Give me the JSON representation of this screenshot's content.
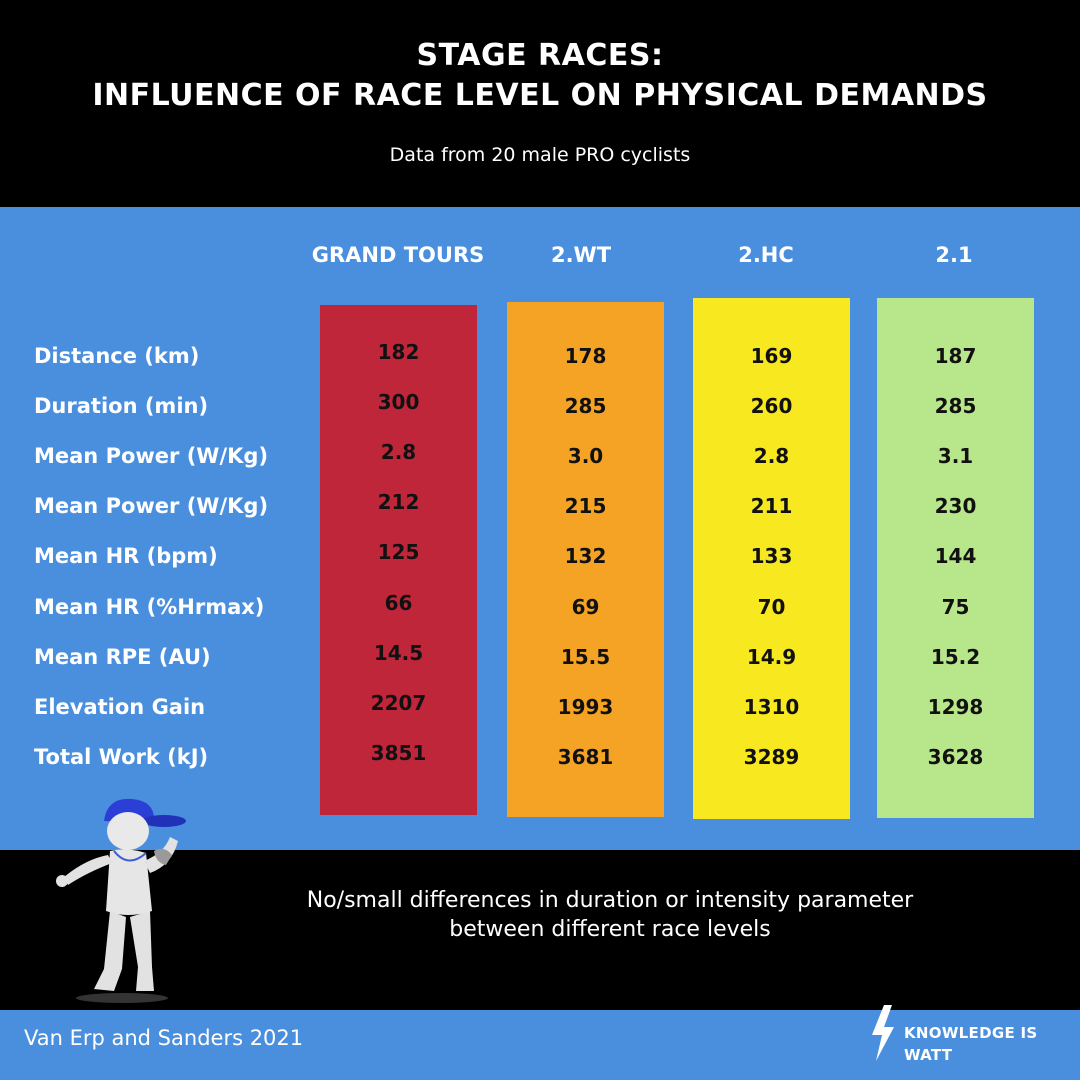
{
  "header": {
    "title_line1": "STAGE RACES:",
    "title_line2": "INFLUENCE OF RACE LEVEL ON PHYSICAL DEMANDS",
    "subtitle": "Data from 20 male PRO cyclists"
  },
  "chart_data": {
    "type": "table",
    "columns": [
      {
        "name": "GRAND TOURS",
        "color": "#c0263a",
        "values": [
          "182",
          "300",
          "2.8",
          "212",
          "125",
          "66",
          "14.5",
          "2207",
          "3851"
        ]
      },
      {
        "name": "2.WT",
        "color": "#f4a325",
        "values": [
          "178",
          "285",
          "3.0",
          "215",
          "132",
          "69",
          "15.5",
          "1993",
          "3681"
        ]
      },
      {
        "name": "2.HC",
        "color": "#f8e81f",
        "values": [
          "169",
          "260",
          "2.8",
          "211",
          "133",
          "70",
          "14.9",
          "1310",
          "3289"
        ]
      },
      {
        "name": "2.1",
        "color": "#b8e68a",
        "values": [
          "187",
          "285",
          "3.1",
          "230",
          "144",
          "75",
          "15.2",
          "1298",
          "3628"
        ]
      }
    ],
    "rows": [
      "Distance (km)",
      "Duration (min)",
      "Mean Power (W/Kg)",
      "Mean Power (W/Kg)",
      "Mean HR (bpm)",
      "Mean HR (%Hrmax)",
      "Mean RPE (AU)",
      "Elevation Gain",
      "Total Work (kJ)"
    ]
  },
  "note": {
    "line1": "No/small differences in duration or intensity parameter",
    "line2": "between different race levels"
  },
  "footer": {
    "source": "Van Erp and  Sanders 2021",
    "brand": "KNOWLEDGE IS WATT",
    "brand_icon": "lightning-bolt-icon"
  },
  "illustration": {
    "icon": "referee-figure-icon",
    "cap_color": "#2b3fd6"
  },
  "colors": {
    "background_blue": "#4a8fde",
    "band_black": "#000000"
  }
}
